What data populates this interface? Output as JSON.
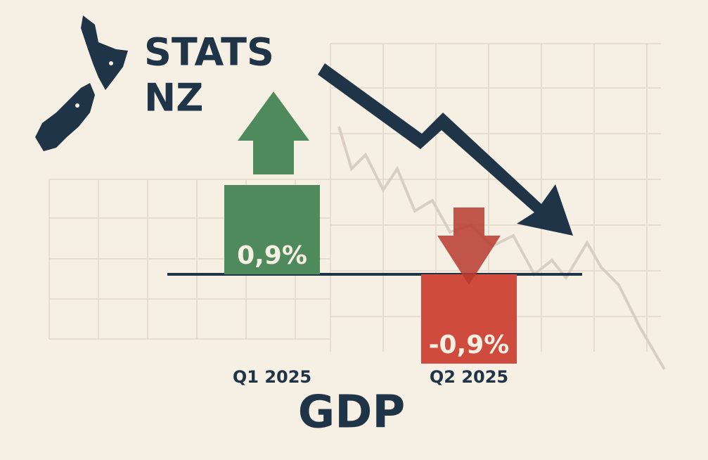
{
  "logo": [
    "STATS",
    "NZ"
  ],
  "chart_data": {
    "type": "bar",
    "title": "GDP",
    "categories": [
      "Q1 2025",
      "Q2 2025"
    ],
    "values": [
      0.9,
      -0.9
    ],
    "value_labels": [
      "0,9%",
      "-0,9%"
    ],
    "colors": [
      "#4f8a5d",
      "#cf4b3d"
    ]
  }
}
